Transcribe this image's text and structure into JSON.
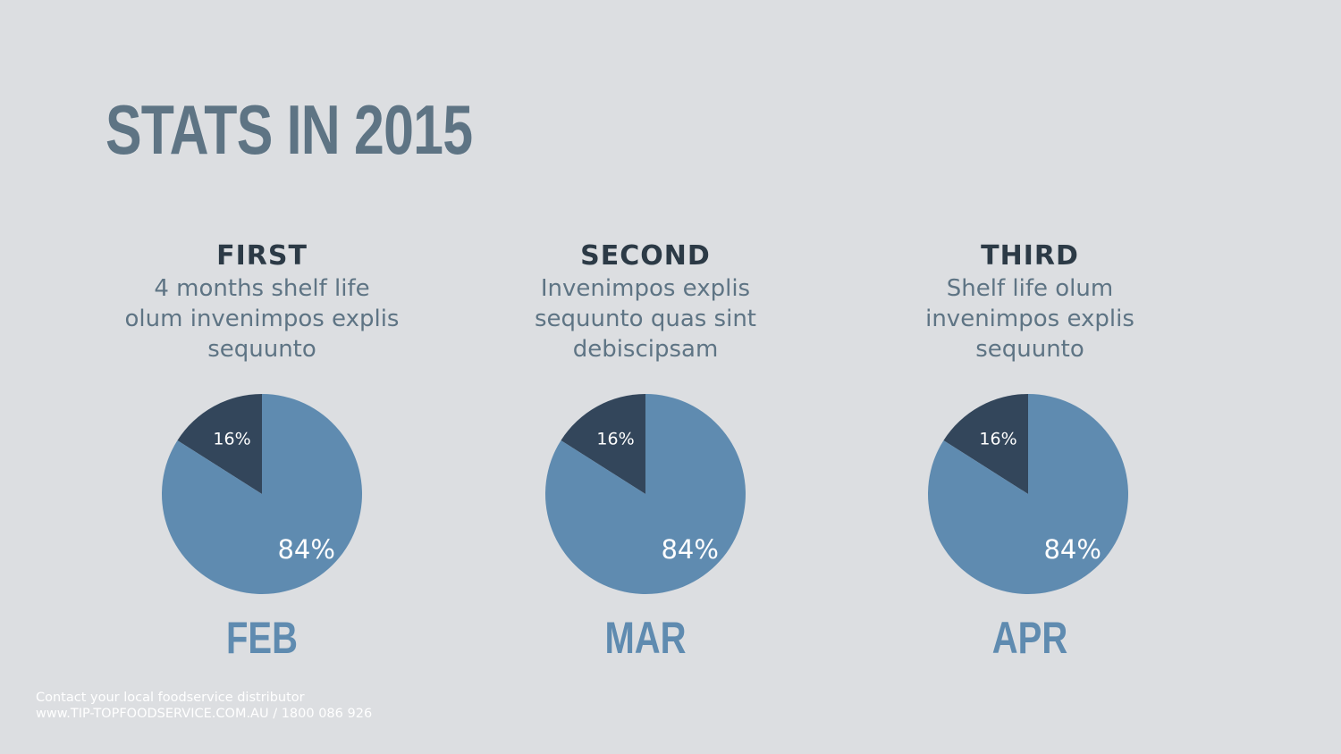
{
  "page": {
    "title": "STATS IN 2015"
  },
  "panels": [
    {
      "heading": "FIRST",
      "description_lines": [
        "4 months shelf life",
        "olum invenimpos explis",
        "sequunto"
      ],
      "month": "FEB"
    },
    {
      "heading": "SECOND",
      "description_lines": [
        "Invenimpos explis",
        "sequunto quas sint",
        "debiscipsam"
      ],
      "month": "MAR"
    },
    {
      "heading": "THIRD",
      "description_lines": [
        "Shelf life olum",
        "invenimpos explis",
        "sequunto"
      ],
      "month": "APR"
    }
  ],
  "colors": {
    "background": "#dcdee1",
    "major_slice": "#5f8bb0",
    "minor_slice": "#33465b",
    "title": "#5e7484",
    "heading": "#2c3a46",
    "month": "#5f8bb0"
  },
  "chart_data": [
    {
      "type": "pie",
      "title": "",
      "labels": [
        "16%",
        "84%"
      ],
      "values": [
        16,
        84
      ],
      "colors": [
        "#33465b",
        "#5f8bb0"
      ]
    },
    {
      "type": "pie",
      "title": "",
      "labels": [
        "16%",
        "84%"
      ],
      "values": [
        16,
        84
      ],
      "colors": [
        "#33465b",
        "#5f8bb0"
      ]
    },
    {
      "type": "pie",
      "title": "",
      "labels": [
        "16%",
        "84%"
      ],
      "values": [
        16,
        84
      ],
      "colors": [
        "#33465b",
        "#5f8bb0"
      ]
    }
  ],
  "footer": {
    "line1": "Contact your local foodservice distributor",
    "line2": "www.TIP-TOPFOODSERVICE.COM.AU / 1800 086 926"
  }
}
